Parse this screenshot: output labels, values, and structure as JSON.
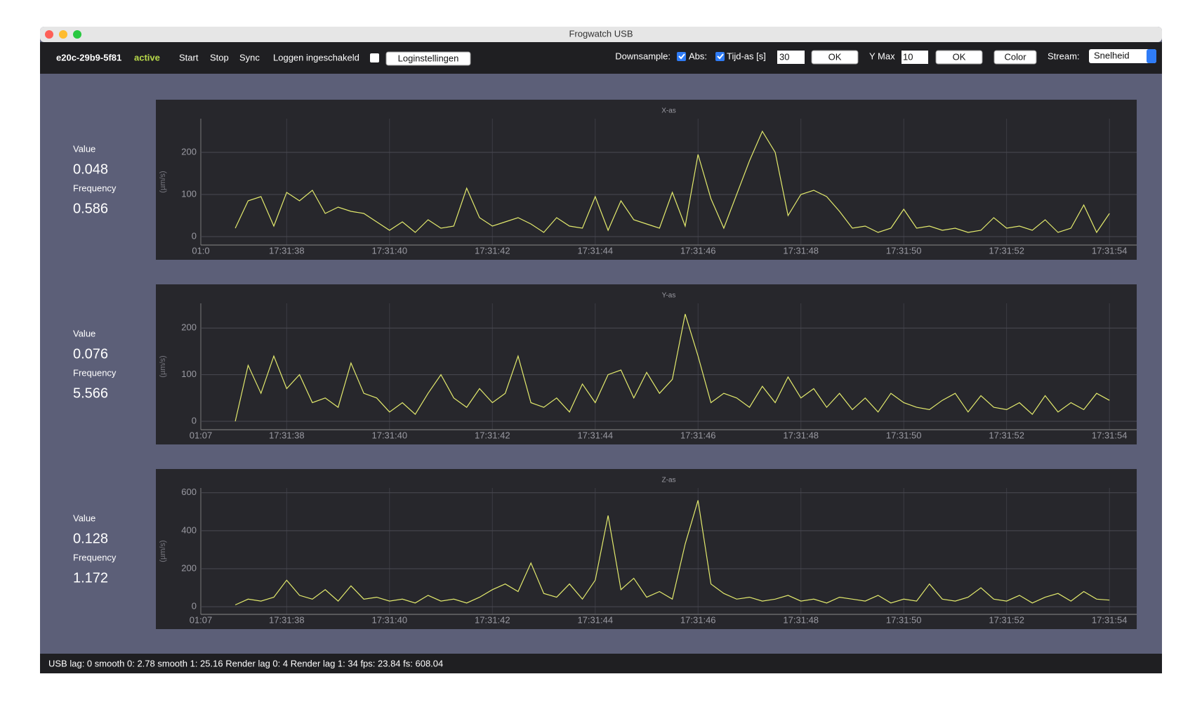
{
  "window_title": "Frogwatch USB",
  "toolbar": {
    "device": "e20c-29b9-5f81",
    "status": "active",
    "buttons": [
      "Start",
      "Stop",
      "Sync"
    ],
    "logging_label": "Loggen ingeschakeld",
    "log_settings": "Loginstellingen",
    "downsample": "Downsample:",
    "abs": "Abs:",
    "time_axis": "Tijd-as [s]",
    "time_value": "30",
    "ok_1": "OK",
    "ymax": "Y Max",
    "ymax_value": "10",
    "ok_2": "OK",
    "color": "Color",
    "stream": "Stream:",
    "stream_value": "Snelheid"
  },
  "panels": [
    {
      "value_label": "Value",
      "value": 0.048,
      "frequency_label": "Frequency",
      "frequency": 0.586
    },
    {
      "value_label": "Value",
      "value": 0.076,
      "frequency_label": "Frequency",
      "frequency": 5.566
    },
    {
      "value_label": "Value",
      "value": 0.128,
      "frequency_label": "Frequency",
      "frequency": 1.172
    }
  ],
  "status_bar": "USB lag: 0  smooth 0: 2.78  smooth 1: 25.16  Render lag 0: 4  Render lag 1: 34  fps: 23.84  fs: 608.04",
  "chart_data": [
    {
      "type": "line",
      "title": "X-as",
      "y_label": "(µm/s)",
      "color": "#e3ea6d",
      "grid": true,
      "xlim": [
        36.33,
        54.53
      ],
      "xticks": [
        {
          "value": 36.33,
          "label": "01:0"
        },
        {
          "value": 38,
          "label": "17:31:38"
        },
        {
          "value": 40,
          "label": "17:31:40"
        },
        {
          "value": 42,
          "label": "17:31:42"
        },
        {
          "value": 44,
          "label": "17:31:44"
        },
        {
          "value": 46,
          "label": "17:31:46"
        },
        {
          "value": 48,
          "label": "17:31:48"
        },
        {
          "value": 50,
          "label": "17:31:50"
        },
        {
          "value": 52,
          "label": "17:31:52"
        },
        {
          "value": 54,
          "label": "17:31:54"
        }
      ],
      "ylim": [
        -20,
        280
      ],
      "yticks": [
        0,
        100,
        200
      ],
      "x": [
        37,
        37.25,
        37.5,
        37.75,
        38,
        38.25,
        38.5,
        38.75,
        39,
        39.25,
        39.5,
        39.75,
        40,
        40.25,
        40.5,
        40.75,
        41,
        41.25,
        41.5,
        41.75,
        42,
        42.25,
        42.5,
        42.75,
        43,
        43.25,
        43.5,
        43.75,
        44,
        44.25,
        44.5,
        44.75,
        45,
        45.25,
        45.5,
        45.75,
        46,
        46.25,
        46.5,
        46.75,
        47,
        47.25,
        47.5,
        47.75,
        48,
        48.25,
        48.5,
        48.75,
        49,
        49.25,
        49.5,
        49.75,
        50,
        50.25,
        50.5,
        50.75,
        51,
        51.25,
        51.5,
        51.75,
        52,
        52.25,
        52.5,
        52.75,
        53,
        53.25,
        53.5,
        53.75,
        54
      ],
      "values": [
        20,
        85,
        95,
        25,
        105,
        85,
        110,
        55,
        70,
        60,
        55,
        35,
        15,
        35,
        10,
        40,
        20,
        25,
        115,
        45,
        25,
        35,
        45,
        30,
        10,
        45,
        25,
        20,
        95,
        15,
        85,
        40,
        30,
        20,
        105,
        25,
        195,
        90,
        20,
        100,
        180,
        250,
        200,
        50,
        100,
        110,
        95,
        60,
        20,
        25,
        10,
        20,
        65,
        20,
        25,
        15,
        20,
        10,
        15,
        45,
        20,
        25,
        15,
        40,
        10,
        20,
        75,
        10,
        55
      ]
    },
    {
      "type": "line",
      "title": "Y-as",
      "y_label": "(µm/s)",
      "color": "#e3ea6d",
      "grid": true,
      "xlim": [
        36.33,
        54.53
      ],
      "xticks": [
        {
          "value": 36.33,
          "label": "01:07"
        },
        {
          "value": 38,
          "label": "17:31:38"
        },
        {
          "value": 40,
          "label": "17:31:40"
        },
        {
          "value": 42,
          "label": "17:31:42"
        },
        {
          "value": 44,
          "label": "17:31:44"
        },
        {
          "value": 46,
          "label": "17:31:46"
        },
        {
          "value": 48,
          "label": "17:31:48"
        },
        {
          "value": 50,
          "label": "17:31:50"
        },
        {
          "value": 52,
          "label": "17:31:52"
        },
        {
          "value": 54,
          "label": "17:31:54"
        }
      ],
      "ylim": [
        -18,
        253
      ],
      "yticks": [
        0,
        100,
        200
      ],
      "x": [
        37,
        37.25,
        37.5,
        37.75,
        38,
        38.25,
        38.5,
        38.75,
        39,
        39.25,
        39.5,
        39.75,
        40,
        40.25,
        40.5,
        40.75,
        41,
        41.25,
        41.5,
        41.75,
        42,
        42.25,
        42.5,
        42.75,
        43,
        43.25,
        43.5,
        43.75,
        44,
        44.25,
        44.5,
        44.75,
        45,
        45.25,
        45.5,
        45.75,
        46,
        46.25,
        46.5,
        46.75,
        47,
        47.25,
        47.5,
        47.75,
        48,
        48.25,
        48.5,
        48.75,
        49,
        49.25,
        49.5,
        49.75,
        50,
        50.25,
        50.5,
        50.75,
        51,
        51.25,
        51.5,
        51.75,
        52,
        52.25,
        52.5,
        52.75,
        53,
        53.25,
        53.5,
        53.75,
        54
      ],
      "values": [
        0,
        120,
        60,
        140,
        70,
        100,
        40,
        50,
        30,
        125,
        60,
        50,
        20,
        40,
        15,
        60,
        100,
        50,
        30,
        70,
        40,
        60,
        140,
        40,
        30,
        50,
        20,
        80,
        40,
        100,
        110,
        50,
        105,
        60,
        90,
        230,
        140,
        40,
        60,
        50,
        30,
        75,
        40,
        95,
        50,
        70,
        30,
        60,
        25,
        50,
        20,
        60,
        40,
        30,
        25,
        45,
        60,
        20,
        55,
        30,
        25,
        40,
        15,
        55,
        20,
        40,
        25,
        60,
        45
      ]
    },
    {
      "type": "line",
      "title": "Z-as",
      "y_label": "(µm/s)",
      "color": "#e3ea6d",
      "grid": true,
      "xlim": [
        36.33,
        54.53
      ],
      "xticks": [
        {
          "value": 36.33,
          "label": "01:07"
        },
        {
          "value": 38,
          "label": "17:31:38"
        },
        {
          "value": 40,
          "label": "17:31:40"
        },
        {
          "value": 42,
          "label": "17:31:42"
        },
        {
          "value": 44,
          "label": "17:31:44"
        },
        {
          "value": 46,
          "label": "17:31:46"
        },
        {
          "value": 48,
          "label": "17:31:48"
        },
        {
          "value": 50,
          "label": "17:31:50"
        },
        {
          "value": 52,
          "label": "17:31:52"
        },
        {
          "value": 54,
          "label": "17:31:54"
        }
      ],
      "ylim": [
        -40,
        625
      ],
      "yticks": [
        0,
        200,
        400,
        600
      ],
      "x": [
        37,
        37.25,
        37.5,
        37.75,
        38,
        38.25,
        38.5,
        38.75,
        39,
        39.25,
        39.5,
        39.75,
        40,
        40.25,
        40.5,
        40.75,
        41,
        41.25,
        41.5,
        41.75,
        42,
        42.25,
        42.5,
        42.75,
        43,
        43.25,
        43.5,
        43.75,
        44,
        44.25,
        44.5,
        44.75,
        45,
        45.25,
        45.5,
        45.75,
        46,
        46.25,
        46.5,
        46.75,
        47,
        47.25,
        47.5,
        47.75,
        48,
        48.25,
        48.5,
        48.75,
        49,
        49.25,
        49.5,
        49.75,
        50,
        50.25,
        50.5,
        50.75,
        51,
        51.25,
        51.5,
        51.75,
        52,
        52.25,
        52.5,
        52.75,
        53,
        53.25,
        53.5,
        53.75,
        54
      ],
      "values": [
        10,
        40,
        30,
        50,
        140,
        60,
        40,
        90,
        30,
        110,
        40,
        50,
        30,
        40,
        20,
        60,
        30,
        40,
        20,
        50,
        90,
        120,
        80,
        230,
        70,
        50,
        120,
        40,
        140,
        480,
        90,
        150,
        50,
        80,
        40,
        330,
        560,
        120,
        70,
        40,
        50,
        30,
        40,
        60,
        30,
        40,
        20,
        50,
        40,
        30,
        60,
        20,
        40,
        30,
        120,
        40,
        30,
        50,
        100,
        40,
        30,
        60,
        20,
        50,
        70,
        30,
        80,
        40,
        35
      ]
    }
  ]
}
